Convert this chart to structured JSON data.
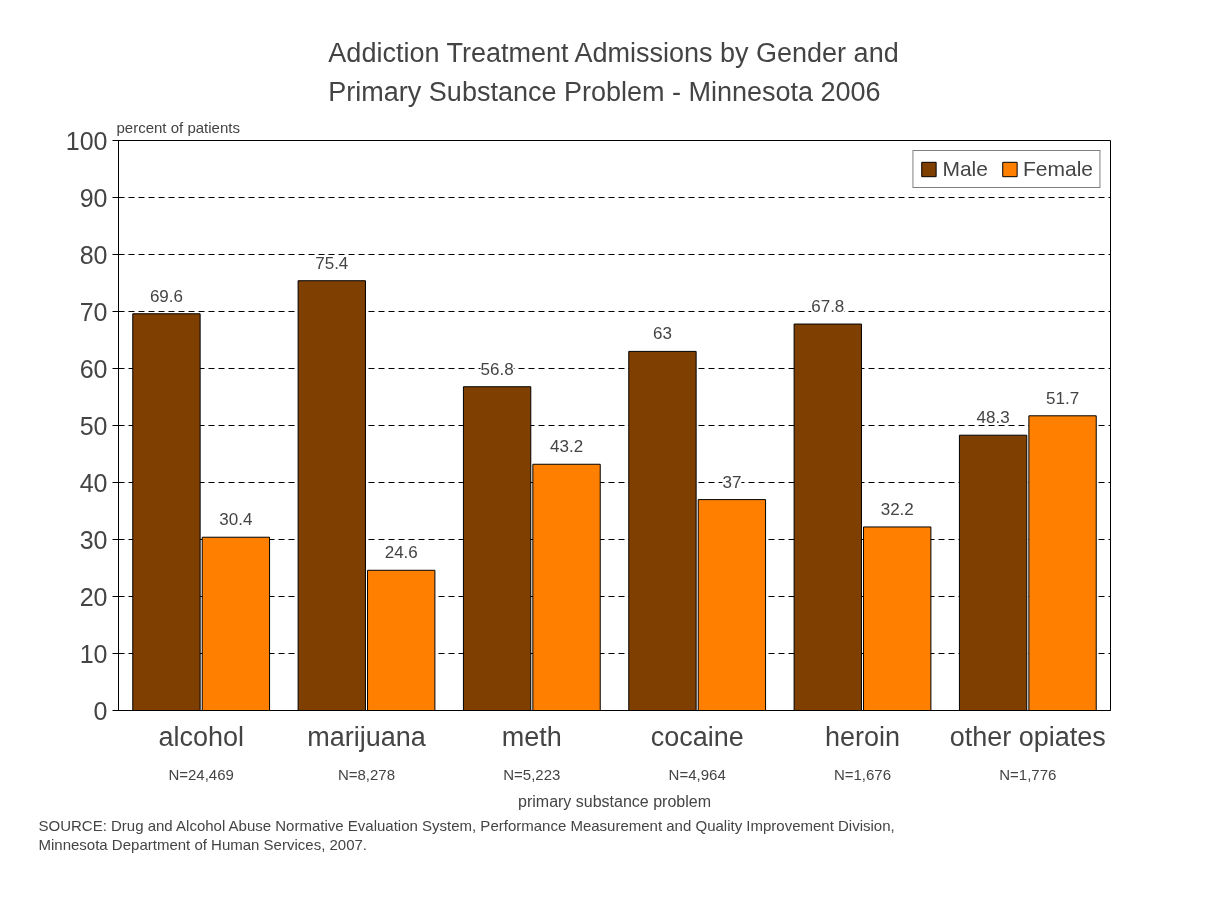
{
  "chart_data": {
    "type": "bar",
    "title": "Addiction Treatment Admissions by Gender and Primary Substance Problem - Minnesota 2006",
    "ylabel": "percent of patients",
    "xlabel": "primary substance problem",
    "categories": [
      "alcohol",
      "marijuana",
      "meth",
      "cocaine",
      "heroin",
      "other opiates"
    ],
    "series": [
      {
        "name": "Male",
        "color": "#7f3f00",
        "values": [
          69.6,
          75.4,
          56.8,
          63,
          67.8,
          48.3
        ]
      },
      {
        "name": "Female",
        "color": "#ff8000",
        "values": [
          30.4,
          24.6,
          43.2,
          37,
          32.2,
          51.7
        ]
      }
    ],
    "ylim": [
      0,
      100
    ],
    "yticks": [
      0,
      10,
      20,
      30,
      40,
      50,
      60,
      70,
      80,
      90,
      100
    ],
    "grid": "y",
    "legend": "top right",
    "data_labels": true,
    "annotations": [
      "N=24,469",
      "N=8,278",
      "N=5,223",
      "N=4,964",
      "N=1,676",
      "N=1,776",
      "SOURCE: Drug and Alcohol Abuse Normative Evaluation System, Performance Measurement and Quality Improvement Division, Minnesota Department of Human Services, 2007."
    ]
  }
}
